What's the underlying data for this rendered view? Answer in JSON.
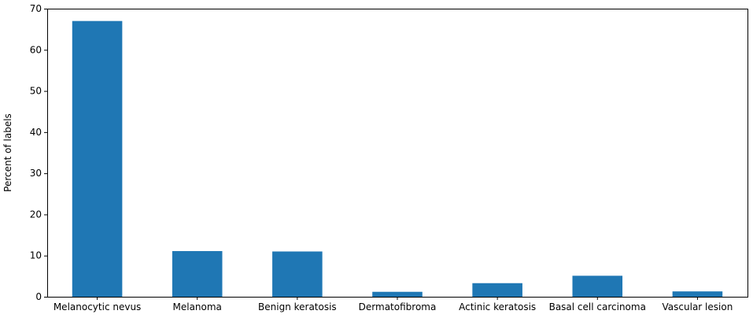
{
  "chart_data": {
    "type": "bar",
    "categories": [
      "Melanocytic nevus",
      "Melanoma",
      "Benign keratosis",
      "Dermatofibroma",
      "Actinic keratosis",
      "Basal cell carcinoma",
      "Vascular lesion"
    ],
    "values": [
      67.0,
      11.1,
      11.0,
      1.2,
      3.3,
      5.1,
      1.3
    ],
    "title": "",
    "xlabel": "",
    "ylabel": "Percent of labels",
    "ylim": [
      0,
      70
    ],
    "yticks": [
      0,
      10,
      20,
      30,
      40,
      50,
      60,
      70
    ],
    "grid": false,
    "legend": "none",
    "colors": {
      "bar": "#1f77b4"
    }
  }
}
